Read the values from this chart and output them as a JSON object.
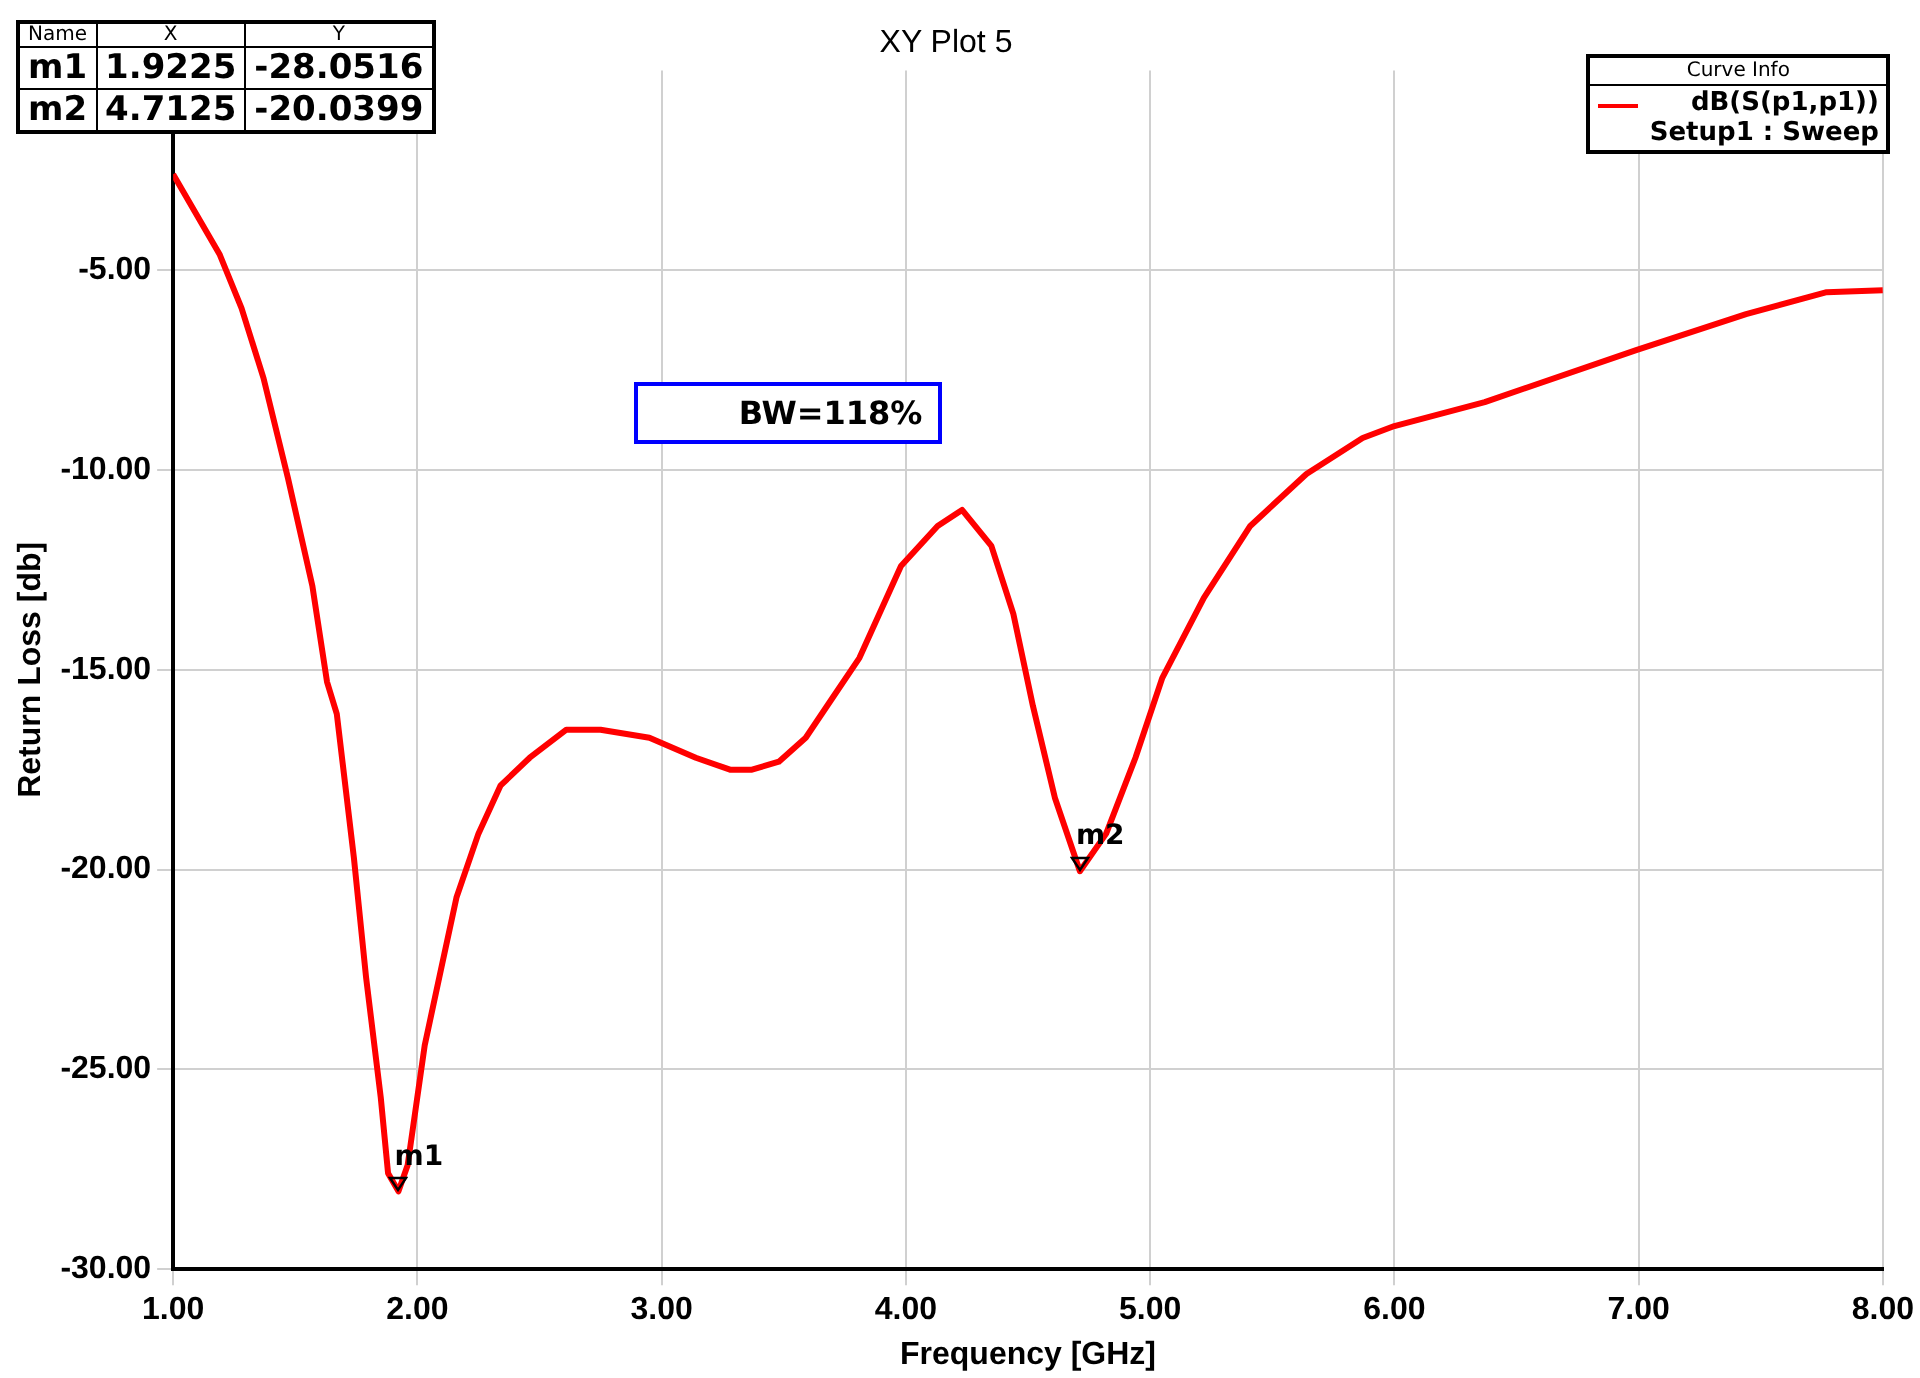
{
  "chart_data": {
    "type": "line",
    "title": "XY Plot 5",
    "xlabel": "Frequency [GHz]",
    "ylabel": "Return Loss [db]",
    "legend_title": "Curve Info",
    "legend": "top right",
    "grid": true,
    "marker": "none",
    "line_style": "solid",
    "xlim": [
      1,
      8
    ],
    "ylim": [
      -30,
      0
    ],
    "xticks": [
      {
        "value": 1,
        "label": "1.00"
      },
      {
        "value": 2,
        "label": "2.00"
      },
      {
        "value": 3,
        "label": "3.00"
      },
      {
        "value": 4,
        "label": "4.00"
      },
      {
        "value": 5,
        "label": "5.00"
      },
      {
        "value": 6,
        "label": "6.00"
      },
      {
        "value": 7,
        "label": "7.00"
      },
      {
        "value": 8,
        "label": "8.00"
      }
    ],
    "yticks": [
      {
        "value": -30,
        "label": "-30.00"
      },
      {
        "value": -25,
        "label": "-25.00"
      },
      {
        "value": -20,
        "label": "-20.00"
      },
      {
        "value": -15,
        "label": "-15.00"
      },
      {
        "value": -10,
        "label": "-10.00"
      },
      {
        "value": -5,
        "label": "-5.00"
      }
    ],
    "annotations": [
      "Name",
      "X",
      "Y",
      "m1",
      "1.9225",
      "-28.0516",
      "m2",
      "4.7125",
      "-20.0399",
      {
        "text": "m1",
        "x": 1.9225,
        "y": -28.0516
      },
      {
        "text": "m2",
        "x": 4.7125,
        "y": -20.0399
      },
      "BW=118%"
    ],
    "series": [
      {
        "name": "dB(S(p1,p1))\nSetup1 : Sweep",
        "color": "#ff0000",
        "x": [
          1,
          1.19,
          1.28,
          1.37,
          1.47,
          1.57,
          1.63,
          1.67,
          1.74,
          1.79,
          1.85,
          1.88,
          1.9225,
          1.96,
          2.03,
          2.1,
          2.16,
          2.25,
          2.34,
          2.46,
          2.61,
          2.75,
          2.95,
          3.14,
          3.28,
          3.37,
          3.48,
          3.59,
          3.7,
          3.81,
          3.98,
          4.13,
          4.23,
          4.35,
          4.44,
          4.52,
          4.61,
          4.7125,
          4.82,
          4.94,
          5.05,
          5.22,
          5.41,
          5.64,
          5.87,
          6,
          6.37,
          6.99,
          7.44,
          7.77,
          8
        ],
        "values": [
          -2.6,
          -4.6,
          -5.95,
          -7.7,
          -10.2,
          -12.9,
          -15.3,
          -16.1,
          -19.7,
          -22.7,
          -25.7,
          -27.6,
          -28.0516,
          -27.4,
          -24.4,
          -22.4,
          -20.7,
          -19.1,
          -17.9,
          -17.2,
          -16.5,
          -16.5,
          -16.7,
          -17.2,
          -17.5,
          -17.5,
          -17.3,
          -16.7,
          -15.7,
          -14.7,
          -12.4,
          -11.4,
          -11,
          -11.9,
          -13.6,
          -15.9,
          -18.2,
          -20.0399,
          -19.1,
          -17.2,
          -15.2,
          -13.2,
          -11.4,
          -10.1,
          -9.2,
          -8.9,
          -8.3,
          -7,
          -6.1,
          -5.55,
          -5.5
        ]
      }
    ]
  }
}
